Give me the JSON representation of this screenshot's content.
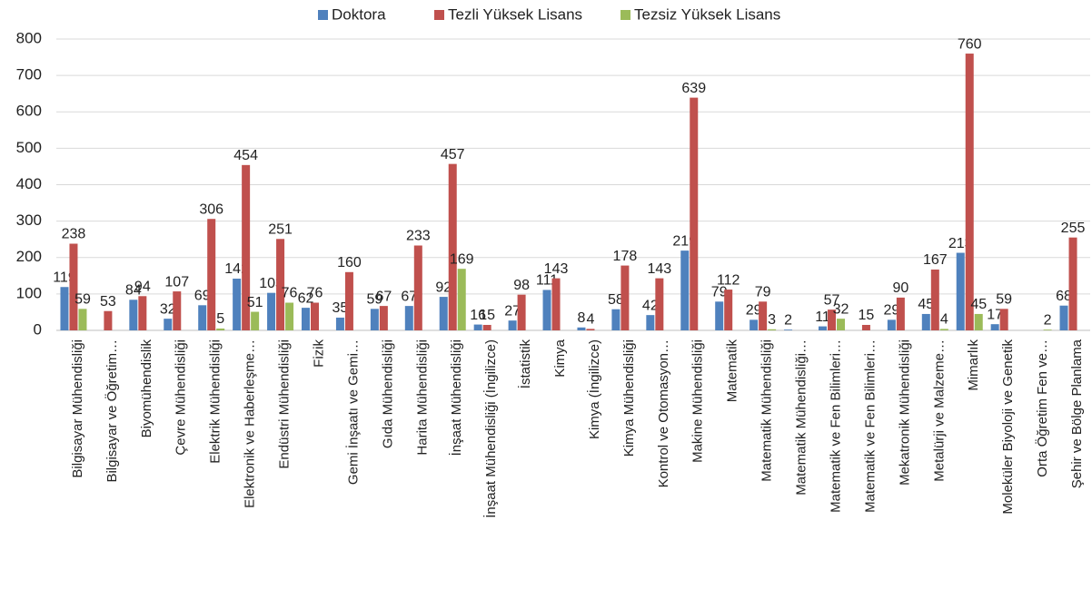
{
  "chart_data": {
    "type": "bar",
    "categories": [
      "Bilgisayar Mühendisliği",
      "Bilgisayar ve Öğretim…",
      "Biyomühendislik",
      "Çevre Mühendisliği",
      "Elektrik Mühendisliği",
      "Elektronik ve Haberleşme…",
      "Endüstri Mühendisliği",
      "Fizik",
      "Gemi İnşaatı ve Gemi…",
      "Gıda Mühendisliği",
      "Harita Mühendisliği",
      "İnşaat Mühendisliği",
      "İnşaat Mühendisliği (İngilizce)",
      "İstatistik",
      "Kimya",
      "Kimya (İngilizce)",
      "Kimya Mühendisliği",
      "Kontrol ve Otomasyon…",
      "Makine Mühendisliği",
      "Matematik",
      "Matematik Mühendisliği",
      "Matematik Mühendisliği…",
      "Matematik ve Fen Bilimleri…",
      "Matematik ve Fen Bilimleri…",
      "Mekatronik Mühendisliği",
      "Metalürji ve Malzeme…",
      "Mimarlık",
      "Moleküler Biyoloji ve Genetik",
      "Orta Öğretim Fen ve…",
      "Şehir ve Bölge Planlama"
    ],
    "series": [
      {
        "name": "Doktora",
        "color": "#4f81bd",
        "values": [
          119,
          null,
          84,
          32,
          69,
          142,
          103,
          62,
          35,
          59,
          67,
          92,
          16,
          27,
          111,
          8,
          58,
          42,
          219,
          79,
          29,
          2,
          11,
          null,
          29,
          45,
          213,
          17,
          null,
          68
        ]
      },
      {
        "name": "Tezli Yüksek Lisans",
        "color": "#c0504d",
        "values": [
          238,
          53,
          94,
          107,
          306,
          454,
          251,
          76,
          160,
          67,
          233,
          457,
          15,
          98,
          143,
          4,
          178,
          143,
          639,
          112,
          79,
          null,
          57,
          15,
          90,
          167,
          760,
          59,
          null,
          255
        ]
      },
      {
        "name": "Tezsiz Yüksek Lisans",
        "color": "#9bbb59",
        "values": [
          59,
          null,
          null,
          null,
          5,
          51,
          76,
          null,
          null,
          null,
          null,
          169,
          null,
          null,
          null,
          null,
          null,
          null,
          null,
          null,
          3,
          null,
          32,
          null,
          null,
          4,
          45,
          null,
          2,
          null
        ]
      }
    ],
    "ylim": [
      0,
      800
    ],
    "yticks": [
      0,
      100,
      200,
      300,
      400,
      500,
      600,
      700,
      800
    ],
    "grid": true,
    "legend": "top"
  }
}
